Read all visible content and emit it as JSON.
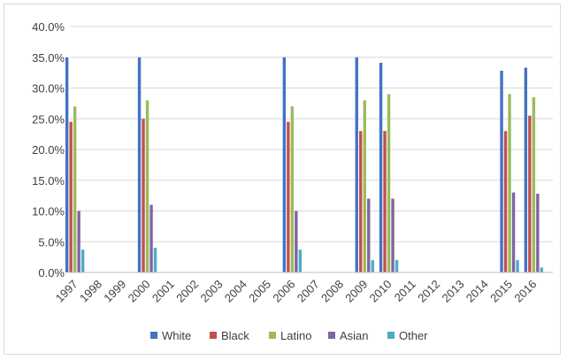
{
  "chart_data": {
    "type": "bar",
    "title": "",
    "xlabel": "",
    "ylabel": "",
    "ylim": [
      0,
      40
    ],
    "y_ticks": [
      "0.0%",
      "5.0%",
      "10.0%",
      "15.0%",
      "20.0%",
      "25.0%",
      "30.0%",
      "35.0%",
      "40.0%"
    ],
    "grid": true,
    "legend_position": "bottom",
    "categories": [
      "1997",
      "1998",
      "1999",
      "2000",
      "2001",
      "2002",
      "2003",
      "2004",
      "2005",
      "2006",
      "2007",
      "2008",
      "2009",
      "2010",
      "2011",
      "2012",
      "2013",
      "2014",
      "2015",
      "2016"
    ],
    "series": [
      {
        "name": "White",
        "color": "#4472c4",
        "values": [
          35.0,
          null,
          null,
          35.0,
          null,
          null,
          null,
          null,
          null,
          35.0,
          null,
          null,
          35.0,
          34.1,
          null,
          null,
          null,
          null,
          32.8,
          33.3
        ]
      },
      {
        "name": "Black",
        "color": "#c0504d",
        "values": [
          24.5,
          null,
          null,
          25.0,
          null,
          null,
          null,
          null,
          null,
          24.5,
          null,
          null,
          23.0,
          23.0,
          null,
          null,
          null,
          null,
          23.0,
          25.5
        ]
      },
      {
        "name": "Latino",
        "color": "#9bbb59",
        "values": [
          27.0,
          null,
          null,
          28.0,
          null,
          null,
          null,
          null,
          null,
          27.0,
          null,
          null,
          28.0,
          29.0,
          null,
          null,
          null,
          null,
          29.0,
          28.5
        ]
      },
      {
        "name": "Asian",
        "color": "#8064a2",
        "values": [
          10.0,
          null,
          null,
          11.0,
          null,
          null,
          null,
          null,
          null,
          10.0,
          null,
          null,
          12.0,
          12.0,
          null,
          null,
          null,
          null,
          13.0,
          12.8
        ]
      },
      {
        "name": "Other",
        "color": "#4bacc6",
        "values": [
          3.7,
          null,
          null,
          4.0,
          null,
          null,
          null,
          null,
          null,
          3.7,
          null,
          null,
          2.0,
          2.0,
          null,
          null,
          null,
          null,
          2.0,
          0.8
        ]
      }
    ]
  }
}
